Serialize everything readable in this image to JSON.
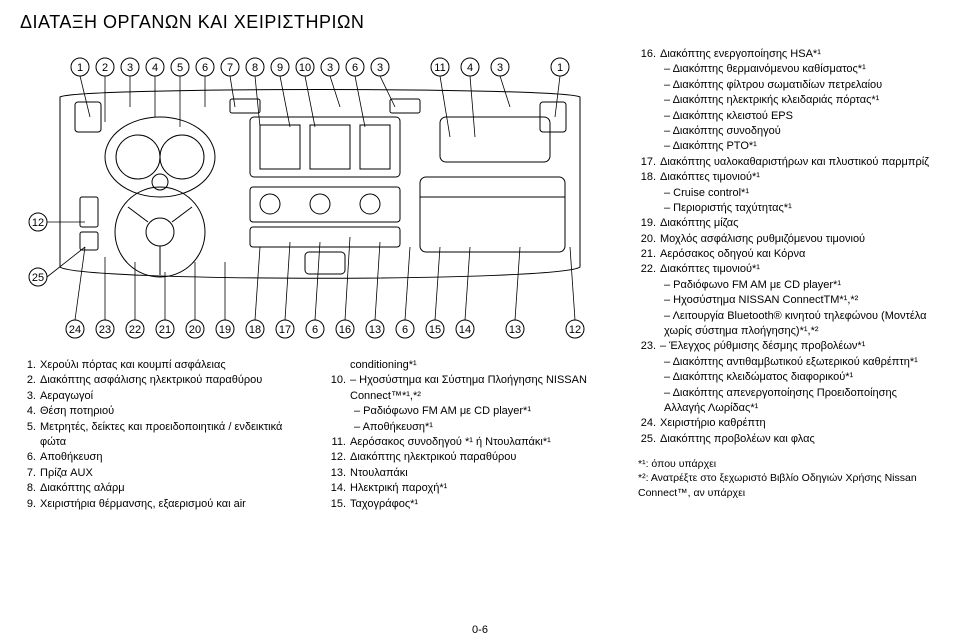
{
  "title": "ΔΙΑΤΑΞΗ ΟΡΓΑΝΩΝ ΚΑΙ ΧΕΙΡΙΣΤΗΡΙΩΝ",
  "page_number": "0-6",
  "diagram": {
    "top_labels": [
      "1",
      "2",
      "3",
      "4",
      "5",
      "6",
      "7",
      "8",
      "9",
      "10",
      "3",
      "6",
      "3",
      "11",
      "4",
      "3",
      "1"
    ],
    "bottom_labels": [
      "24",
      "23",
      "22",
      "21",
      "20",
      "19",
      "18",
      "17",
      "6",
      "16",
      "13",
      "6",
      "15",
      "14",
      "13",
      "12"
    ],
    "left_labels": [
      "12",
      "25"
    ],
    "stroke": "#000000",
    "bg": "#ffffff",
    "circle_r": 9,
    "font_size": 11
  },
  "col_a": [
    {
      "n": "1.",
      "t": "Χερούλι πόρτας και κουμπί ασφάλειας"
    },
    {
      "n": "2.",
      "t": "Διακόπτης ασφάλισης ηλεκτρικού παραθύρου"
    },
    {
      "n": "3.",
      "t": "Αεραγωγοί"
    },
    {
      "n": "4.",
      "t": "Θέση ποτηριού"
    },
    {
      "n": "5.",
      "t": "Μετρητές, δείκτες και προειδοποιητικά / ενδεικτικά φώτα"
    },
    {
      "n": "6.",
      "t": "Αποθήκευση"
    },
    {
      "n": "7.",
      "t": "Πρίζα AUX"
    },
    {
      "n": "8.",
      "t": "Διακόπτης αλάρμ"
    },
    {
      "n": "9.",
      "t": "Χειριστήρια θέρμανσης, εξαερισμού και air"
    }
  ],
  "col_b": [
    {
      "n": "",
      "t": "conditioning*¹"
    },
    {
      "n": "10.",
      "t": "– Ηχοσύστημα και Σύστημα Πλοήγησης NISSAN Connect™*¹,*²"
    },
    {
      "n": "",
      "t": "– Ραδιόφωνο FM AM με CD player*¹",
      "sub": true
    },
    {
      "n": "",
      "t": "– Αποθήκευση*¹",
      "sub": true
    },
    {
      "n": "11.",
      "t": "Αερόσακος συνοδηγού *¹ ή Ντουλαπάκι*¹"
    },
    {
      "n": "12.",
      "t": "Διακόπτης ηλεκτρικού παραθύρου"
    },
    {
      "n": "13.",
      "t": "Ντουλαπάκι"
    },
    {
      "n": "14.",
      "t": "Ηλεκτρική παροχή*¹"
    },
    {
      "n": "15.",
      "t": "Ταχογράφος*¹"
    }
  ],
  "right": [
    {
      "n": "16.",
      "t": "Διακόπτης ενεργοποίησης HSA*¹"
    },
    {
      "n": "",
      "t": "– Διακόπτης θερμαινόμενου καθίσματος*¹",
      "sub": true
    },
    {
      "n": "",
      "t": "– Διακόπτης φίλτρου σωματιδίων πετρελαίου",
      "sub": true
    },
    {
      "n": "",
      "t": "– Διακόπτης ηλεκτρικής κλειδαριάς πόρτας*¹",
      "sub": true
    },
    {
      "n": "",
      "t": "– Διακόπτης κλειστού EPS",
      "sub": true
    },
    {
      "n": "",
      "t": "– Διακόπτης συνοδηγού",
      "sub": true
    },
    {
      "n": "",
      "t": "– Διακόπτης PTO*¹",
      "sub": true
    },
    {
      "n": "17.",
      "t": "Διακόπτης υαλοκαθαριστήρων και πλυστικού παρμπρίζ"
    },
    {
      "n": "18.",
      "t": "Διακόπτες τιμονιού*¹"
    },
    {
      "n": "",
      "t": "– Cruise control*¹",
      "sub": true
    },
    {
      "n": "",
      "t": "– Περιοριστής ταχύτητας*¹",
      "sub": true
    },
    {
      "n": "19.",
      "t": "Διακόπτης μίζας"
    },
    {
      "n": "20.",
      "t": "Μοχλός ασφάλισης ρυθμιζόμενου τιμονιού"
    },
    {
      "n": "21.",
      "t": "Αερόσακος οδηγού και Κόρνα"
    },
    {
      "n": "22.",
      "t": "Διακόπτες τιμονιού*¹"
    },
    {
      "n": "",
      "t": "– Ραδιόφωνο FM AM με CD player*¹",
      "sub": true
    },
    {
      "n": "",
      "t": "– Ηχοσύστημα NISSAN ConnectTM*¹,*²",
      "sub": true
    },
    {
      "n": "",
      "t": "– Λειτουργία Bluetooth® κινητού τηλεφώνου (Μοντέλα χωρίς σύστημα πλοήγησης)*¹,*²",
      "sub": true
    },
    {
      "n": "23.",
      "t": "– Έλεγχος ρύθμισης δέσμης προβολέων*¹"
    },
    {
      "n": "",
      "t": "– Διακόπτης αντιθαμβωτικού εξωτερικού καθρέπτη*¹",
      "sub": true
    },
    {
      "n": "",
      "t": "– Διακόπτης κλειδώματος διαφορικού*¹",
      "sub": true
    },
    {
      "n": "",
      "t": "– Διακόπτης απενεργοποίησης Προειδοποίησης Αλλαγής Λωρίδας*¹",
      "sub": true
    },
    {
      "n": "24.",
      "t": "Χειριστήριο καθρέπτη"
    },
    {
      "n": "25.",
      "t": "Διακόπτης προβολέων και φλας"
    }
  ],
  "footnotes": [
    "*¹: όπου υπάρχει",
    "*²: Ανατρέξτε στο ξεχωριστό Βιβλίο Οδηγιών Χρήσης Nissan Connect™, αν υπάρχει"
  ]
}
